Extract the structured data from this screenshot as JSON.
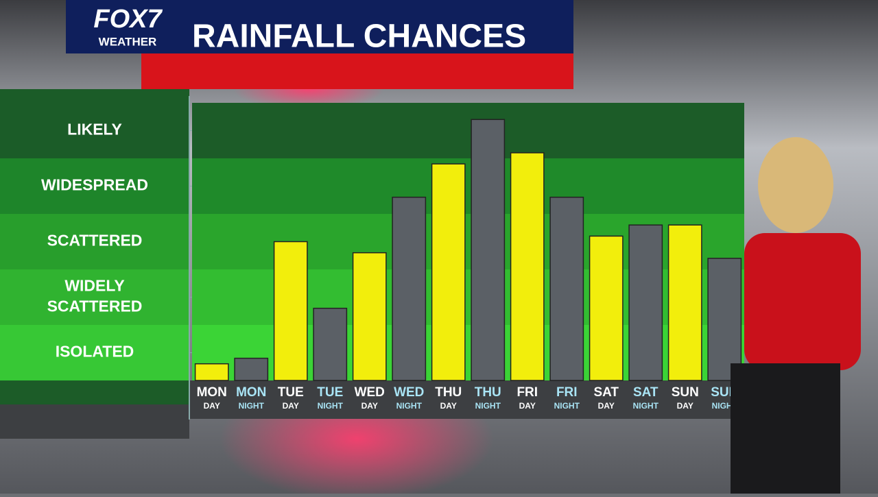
{
  "brand": {
    "logo": "FOX7",
    "logo_sub": "WEATHER"
  },
  "chart_data": {
    "type": "bar",
    "title": "RAINFALL CHANCES",
    "categories": [
      "MON",
      "MON",
      "TUE",
      "TUE",
      "WED",
      "WED",
      "THU",
      "THU",
      "FRI",
      "FRI",
      "SAT",
      "SAT",
      "SUN",
      "SUN"
    ],
    "category_sublabels": [
      "DAY",
      "NIGHT",
      "DAY",
      "NIGHT",
      "DAY",
      "NIGHT",
      "DAY",
      "NIGHT",
      "DAY",
      "NIGHT",
      "DAY",
      "NIGHT",
      "DAY",
      "NIGHT"
    ],
    "values": [
      0.3,
      0.4,
      2.5,
      1.3,
      2.3,
      3.3,
      3.9,
      4.7,
      4.1,
      3.3,
      2.6,
      2.8,
      2.8,
      2.2
    ],
    "colors": [
      "#f2ee0c",
      "#5b6066",
      "#f2ee0c",
      "#5b6066",
      "#f2ee0c",
      "#5b6066",
      "#f2ee0c",
      "#5b6066",
      "#f2ee0c",
      "#5b6066",
      "#f2ee0c",
      "#5b6066",
      "#f2ee0c",
      "#5b6066"
    ],
    "label_colors": [
      "#ffffff",
      "#a9e4f5",
      "#ffffff",
      "#a9e4f5",
      "#ffffff",
      "#a9e4f5",
      "#ffffff",
      "#a9e4f5",
      "#ffffff",
      "#a9e4f5",
      "#ffffff",
      "#a9e4f5",
      "#ffffff",
      "#a9e4f5"
    ],
    "ylim": [
      0,
      5
    ],
    "yticks": [
      {
        "value": 0.5,
        "label": "ISOLATED"
      },
      {
        "value": 1.5,
        "label": "WIDELY SCATTERED"
      },
      {
        "value": 2.5,
        "label": "SCATTERED"
      },
      {
        "value": 3.5,
        "label": "WIDESPREAD"
      },
      {
        "value": 4.5,
        "label": "LIKELY"
      }
    ],
    "band_colors": [
      "#3bd436",
      "#33bd31",
      "#2aa52c",
      "#1f8a2a",
      "#1c5c28"
    ]
  }
}
